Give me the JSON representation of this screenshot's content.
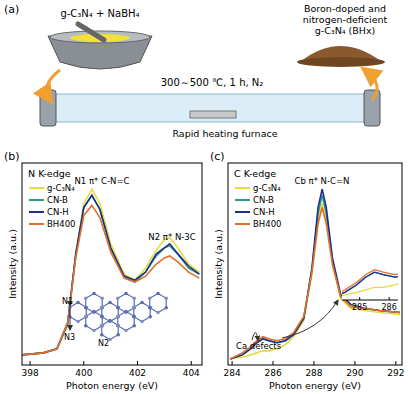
{
  "panel_a": {
    "label": "(a)",
    "reactants": "g-C₃N₄ + NaBH₄",
    "product": [
      "Boron-doped and",
      "nitrogen-deficient",
      "g-C₃N₄ (BHx)"
    ],
    "conditions": "300～500 ℃, 1 h, N₂",
    "furnace": "Rapid heating furnace"
  },
  "chart_data": [
    {
      "type": "line",
      "panel_label": "(b)",
      "title": "N K-edge",
      "x_label": "Photon energy (eV)",
      "y_label": "Intensity (a.u.)",
      "x": [
        397.7,
        398.5,
        399.0,
        399.4,
        399.7,
        400.0,
        400.3,
        400.6,
        401.0,
        401.5,
        401.9,
        402.3,
        402.7,
        403.0,
        403.2,
        403.5,
        403.9,
        404.3
      ],
      "series": [
        {
          "name": "g-C₃N₄",
          "color": "#e6dc3c",
          "values": [
            0.05,
            0.06,
            0.08,
            0.2,
            0.55,
            0.8,
            0.87,
            0.8,
            0.6,
            0.45,
            0.42,
            0.48,
            0.57,
            0.62,
            0.63,
            0.58,
            0.5,
            0.46
          ]
        },
        {
          "name": "CN-B",
          "color": "#2c9c8c",
          "values": [
            0.05,
            0.06,
            0.08,
            0.2,
            0.54,
            0.78,
            0.84,
            0.77,
            0.58,
            0.44,
            0.41,
            0.46,
            0.54,
            0.58,
            0.59,
            0.55,
            0.48,
            0.45
          ]
        },
        {
          "name": "CN-H",
          "color": "#1c2f8c",
          "values": [
            0.05,
            0.06,
            0.08,
            0.21,
            0.55,
            0.78,
            0.84,
            0.77,
            0.58,
            0.44,
            0.42,
            0.46,
            0.55,
            0.58,
            0.6,
            0.55,
            0.49,
            0.45
          ]
        },
        {
          "name": "BH400",
          "color": "#e0702c",
          "values": [
            0.05,
            0.06,
            0.08,
            0.21,
            0.53,
            0.74,
            0.79,
            0.73,
            0.56,
            0.43,
            0.41,
            0.44,
            0.5,
            0.53,
            0.54,
            0.51,
            0.46,
            0.43
          ]
        }
      ],
      "xlim": [
        397.7,
        404.4
      ],
      "xticks": [
        398,
        400,
        402,
        404
      ],
      "ylim": [
        0,
        1
      ],
      "tick_labels": "x",
      "legend": "upper-left",
      "annotations": [
        "N1 π* C-N=C",
        "N2 π* N-3C"
      ],
      "structure_labels": [
        "N1",
        "N3",
        "N2"
      ]
    },
    {
      "type": "line",
      "panel_label": "(c)",
      "title": "C K-edge",
      "x_label": "Photon energy (eV)",
      "y_label": "Intensity (a.u.)",
      "x": [
        283.9,
        284.5,
        284.9,
        285.2,
        285.5,
        285.8,
        286.2,
        286.6,
        287.0,
        287.5,
        287.9,
        288.2,
        288.4,
        288.6,
        288.9,
        289.3,
        289.8,
        290.5,
        291.2,
        292.2
      ],
      "series": [
        {
          "name": "g-C₃N₄",
          "color": "#e6dc3c",
          "values": [
            0.03,
            0.04,
            0.05,
            0.06,
            0.07,
            0.07,
            0.08,
            0.1,
            0.14,
            0.22,
            0.45,
            0.72,
            0.8,
            0.72,
            0.5,
            0.33,
            0.28,
            0.27,
            0.26,
            0.25
          ]
        },
        {
          "name": "CN-B",
          "color": "#2c9c8c",
          "values": [
            0.03,
            0.05,
            0.08,
            0.11,
            0.13,
            0.12,
            0.11,
            0.12,
            0.15,
            0.23,
            0.47,
            0.75,
            0.84,
            0.75,
            0.52,
            0.34,
            0.29,
            0.28,
            0.27,
            0.26
          ]
        },
        {
          "name": "CN-H",
          "color": "#1c2f8c",
          "values": [
            0.03,
            0.05,
            0.08,
            0.11,
            0.13,
            0.12,
            0.11,
            0.12,
            0.15,
            0.23,
            0.48,
            0.78,
            0.87,
            0.78,
            0.53,
            0.35,
            0.3,
            0.28,
            0.27,
            0.26
          ]
        },
        {
          "name": "BH400",
          "color": "#e0702c",
          "values": [
            0.03,
            0.06,
            0.09,
            0.12,
            0.14,
            0.13,
            0.12,
            0.13,
            0.16,
            0.24,
            0.46,
            0.7,
            0.78,
            0.7,
            0.5,
            0.34,
            0.29,
            0.28,
            0.27,
            0.26
          ]
        }
      ],
      "xlim": [
        283.8,
        292.3
      ],
      "xticks": [
        284,
        286,
        288,
        290,
        292
      ],
      "ylim": [
        0,
        1
      ],
      "tick_labels": "x",
      "legend": "upper-left",
      "annotations": [
        "Cb π* N-C=N",
        "Ca defects"
      ],
      "inset": {
        "xlim": [
          284.4,
          286.3
        ],
        "xticks": [
          285,
          286
        ],
        "ylim": [
          0.02,
          0.17
        ]
      }
    }
  ]
}
